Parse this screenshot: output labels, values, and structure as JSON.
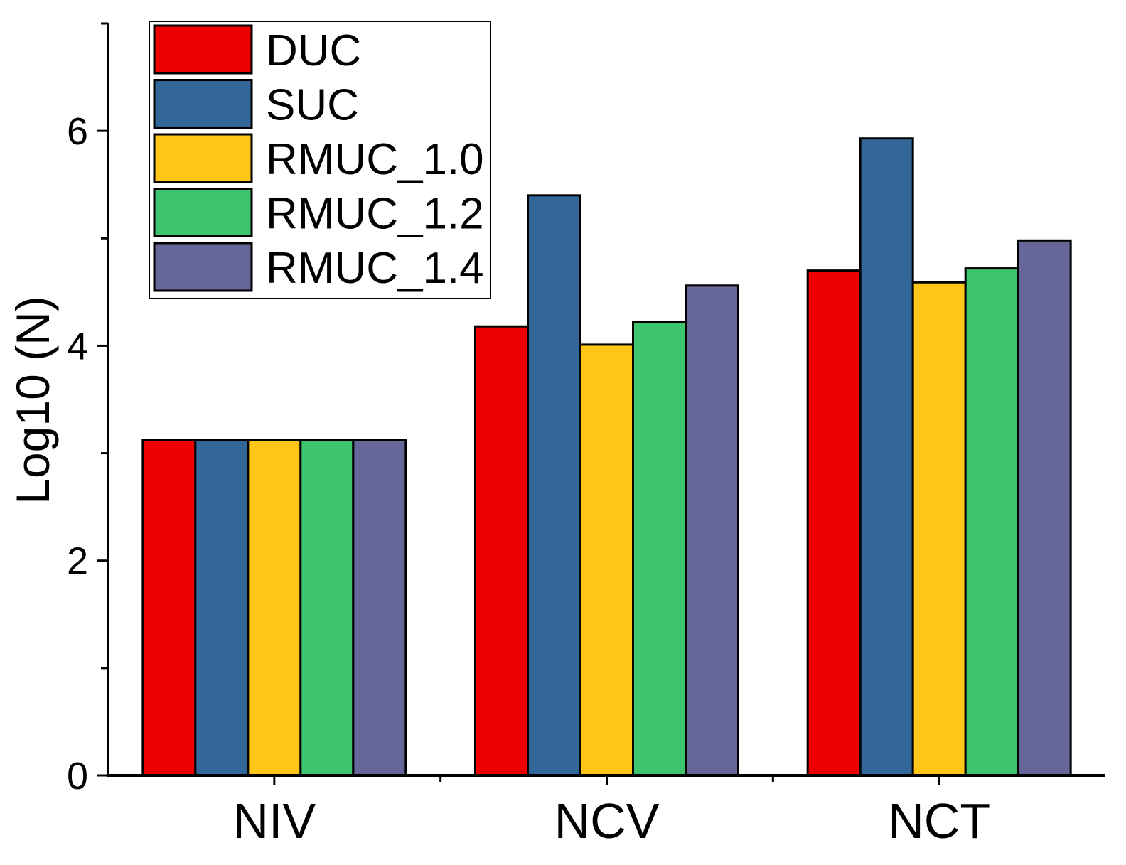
{
  "chart_data": {
    "type": "bar",
    "title": "",
    "xlabel": "",
    "ylabel": "Log10 (N)",
    "ylim": [
      0,
      7
    ],
    "yticks": [
      0,
      2,
      4,
      6
    ],
    "ytick_labels": [
      "0",
      "2",
      "4",
      "6"
    ],
    "categories": [
      "NIV",
      "NCV",
      "NCT"
    ],
    "series": [
      {
        "name": "DUC",
        "color": "#ee0000",
        "values": [
          3.12,
          4.18,
          4.7
        ]
      },
      {
        "name": "SUC",
        "color": "#336699",
        "values": [
          3.12,
          5.4,
          5.93
        ]
      },
      {
        "name": "RMUC_1.0",
        "color": "#ffc517",
        "values": [
          3.12,
          4.01,
          4.59
        ]
      },
      {
        "name": "RMUC_1.2",
        "color": "#3cc46e",
        "values": [
          3.12,
          4.22,
          4.72
        ]
      },
      {
        "name": "RMUC_1.4",
        "color": "#666699",
        "values": [
          3.12,
          4.56,
          4.98
        ]
      }
    ],
    "legend_position": "top-left",
    "grid": false
  }
}
